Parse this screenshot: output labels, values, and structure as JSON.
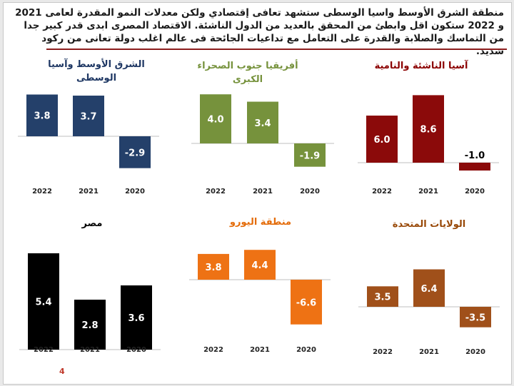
{
  "header": {
    "text": "منطقة الشرق الأوسط واسيا الوسطى ستشهد تعافى إقتصادي ولكن معدلات النمو المقدرة لعامى 2021 و 2022 ستكون اقل وابطئ من المحقق بالعديد من الدول الناشئة. الاقتصاد المصرى ابدى قدر كبير جدا من التماسك والصلابة والقدرة على التعامل مع تداعيات الجائحة فى عالم اغلب دولة تعانى من ركود شديد."
  },
  "page_number": "4",
  "chart_data": [
    {
      "type": "bar",
      "title": [
        "الشرق الأوسط وآسيا",
        "الوسطى"
      ],
      "title_color": "#1f3864",
      "color": "#24406a",
      "label_color": "#ffffff",
      "categories": [
        "2022",
        "2021",
        "2020"
      ],
      "values": [
        3.8,
        3.7,
        -2.9
      ],
      "value_labels": [
        "3.8",
        "3.7",
        "-2.9"
      ]
    },
    {
      "type": "bar",
      "title": [
        "أفريقيا جنوب الصحراء",
        "الكبرى"
      ],
      "title_color": "#76923c",
      "color": "#76923c",
      "label_color": "#ffffff",
      "categories": [
        "2022",
        "2021",
        "2020"
      ],
      "values": [
        4.0,
        3.4,
        -1.9
      ],
      "value_labels": [
        "4.0",
        "3.4",
        "-1.9"
      ]
    },
    {
      "type": "bar",
      "title": [
        "آسيا الناشئة والنامية"
      ],
      "title_color": "#8b0000",
      "color": "#8b0a0a",
      "label_color": "#ffffff",
      "neg_label_color": "#000000",
      "categories": [
        "2022",
        "2021",
        "2020"
      ],
      "values": [
        6.0,
        8.6,
        -1.0
      ],
      "value_labels": [
        "6.0",
        "8.6",
        "-1.0"
      ]
    },
    {
      "type": "bar",
      "title": [
        "مصر"
      ],
      "title_color": "#000000",
      "color": "#000000",
      "label_color": "#ffffff",
      "categories": [
        "2022",
        "2021",
        "2020"
      ],
      "values": [
        5.4,
        2.8,
        3.6
      ],
      "value_labels": [
        "5.4",
        "2.8",
        "3.6"
      ]
    },
    {
      "type": "bar",
      "title": [
        "منطقة اليورو"
      ],
      "title_color": "#e46c0a",
      "color": "#ee7214",
      "label_color": "#ffffff",
      "categories": [
        "2022",
        "2021",
        "2020"
      ],
      "values": [
        3.8,
        4.4,
        -6.6
      ],
      "value_labels": [
        "3.8",
        "4.4",
        "-6.6"
      ]
    },
    {
      "type": "bar",
      "title": [
        "الولايات المتحدة"
      ],
      "title_color": "#984807",
      "color": "#a0501a",
      "label_color": "#ffffff",
      "categories": [
        "2022",
        "2021",
        "2020"
      ],
      "values": [
        3.5,
        6.4,
        -3.5
      ],
      "value_labels": [
        "3.5",
        "6.4",
        "-3.5"
      ]
    }
  ]
}
